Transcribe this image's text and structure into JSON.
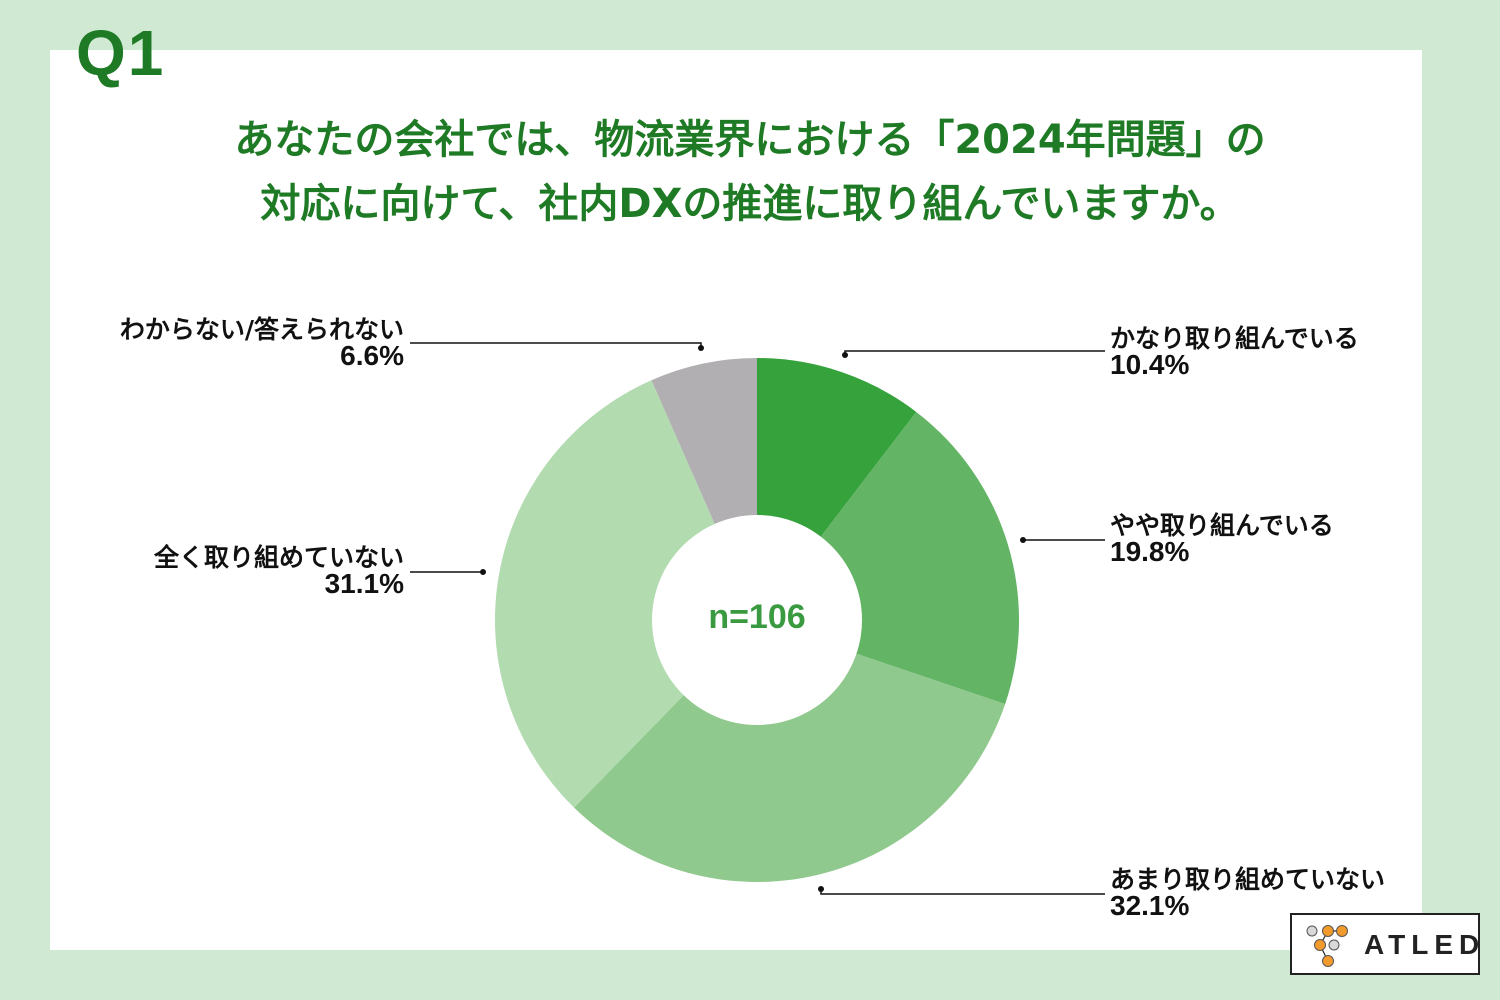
{
  "question_label": "Q1",
  "title": {
    "line1": "あなたの会社では、物流業界における「2024年問題」の",
    "line2": "対応に向けて、社内DXの推進に取り組んでいますか。"
  },
  "center_label": "n=106",
  "logo": {
    "text": "ATLED"
  },
  "colors": {
    "background": "#d0e9d3",
    "title": "#1e7a24",
    "center_text": "#3a9a40"
  },
  "labels": [
    {
      "name": "かなり取り組んでいる",
      "pct": "10.4%"
    },
    {
      "name": "やや取り組んでいる",
      "pct": "19.8%"
    },
    {
      "name": "あまり取り組めていない",
      "pct": "32.1%"
    },
    {
      "name": "全く取り組めていない",
      "pct": "31.1%"
    },
    {
      "name": "わからない/答えられない",
      "pct": "6.6%"
    }
  ],
  "chart_data": {
    "type": "pie",
    "subtype": "donut",
    "title": "あなたの会社では、物流業界における「2024年問題」の対応に向けて、社内DXの推進に取り組んでいますか。",
    "sample_size": "n=106",
    "categories": [
      "かなり取り組んでいる",
      "やや取り組んでいる",
      "あまり取り組めていない",
      "全く取り組めていない",
      "わからない/答えられない"
    ],
    "values": [
      10.4,
      19.8,
      32.1,
      31.1,
      6.6
    ],
    "unit": "%",
    "colors": [
      "#35a23c",
      "#63b465",
      "#90c98d",
      "#b2dbb0",
      "#b1afb1"
    ],
    "start_angle": "12 o'clock, clockwise",
    "legend": "callout labels with leader lines"
  }
}
